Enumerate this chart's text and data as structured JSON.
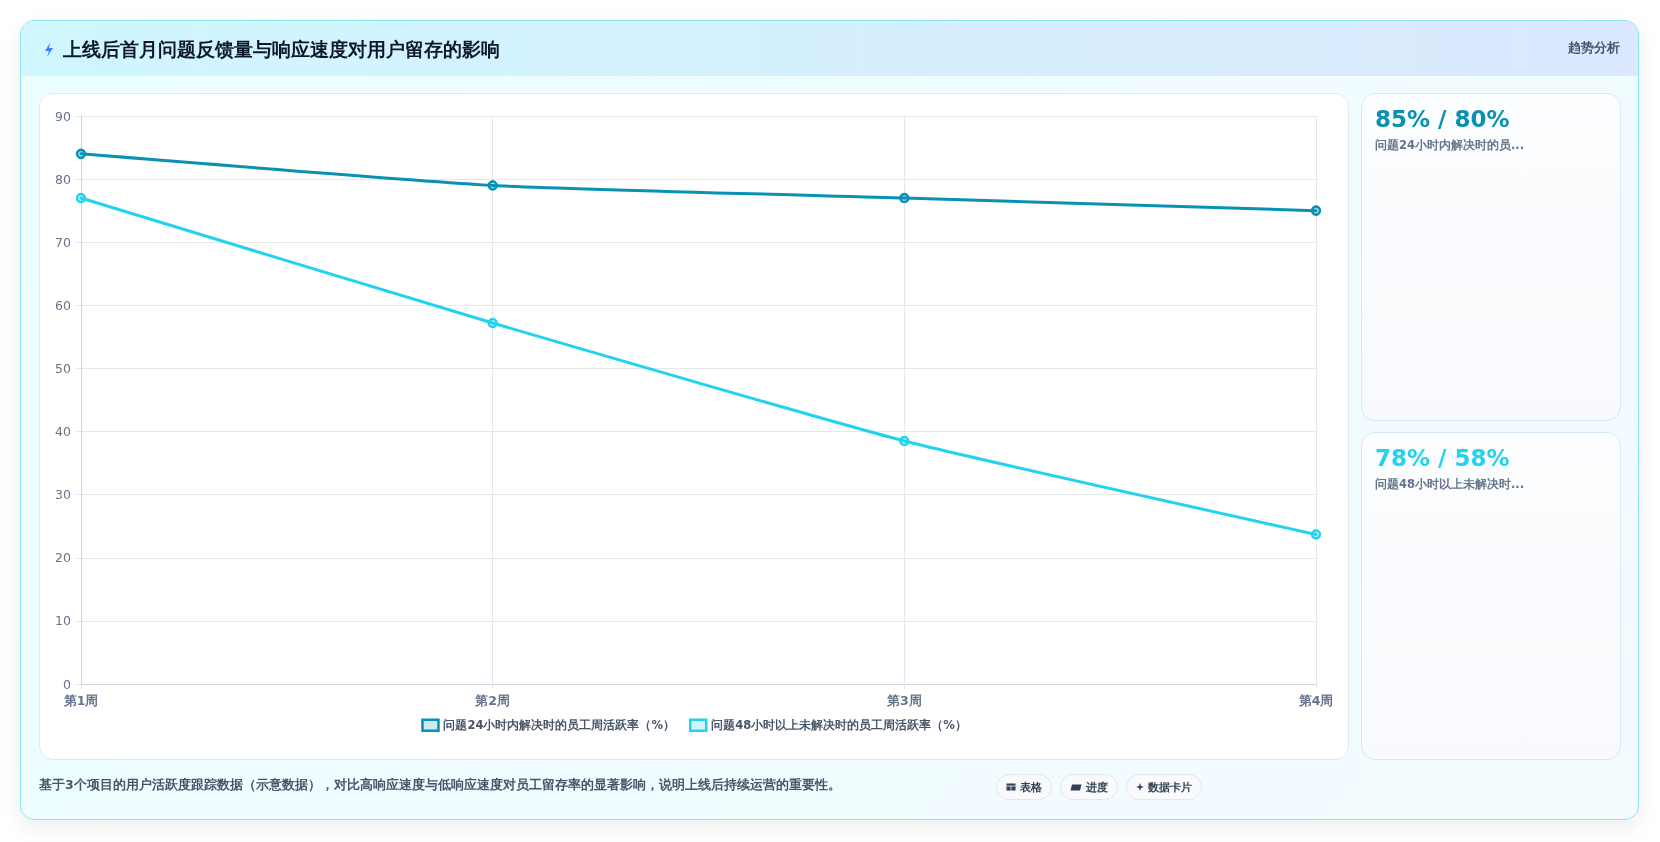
{
  "chart_data": [
    {
      "type": "line",
      "title": "上线后首月问题反馈量与响应速度对用户留存的影响",
      "categories": [
        "第1周",
        "第2周",
        "第3周",
        "第4周"
      ],
      "series": [
        {
          "name": "问题24小时内解决时的员工周活跃率（%）",
          "color": "#0891b2",
          "values": [
            84,
            79,
            77,
            75
          ]
        },
        {
          "name": "问题48小时以上未解决时的员工周活跃率（%）",
          "color": "#22d3ee",
          "values": [
            77,
            57.2,
            38.5,
            23.7
          ]
        }
      ],
      "ylim": [
        0,
        90
      ],
      "yticks": [
        0,
        10,
        20,
        30,
        40,
        50,
        60,
        70,
        80,
        90
      ],
      "grid": true,
      "legend": "bottom",
      "marker": "circle",
      "line_style": "solid",
      "annotations": [
        "趋势分析",
        "基于3个项目的用户活跃度跟踪数据（示意数据），对比高响应速度与低响应速度对员工留存率的显著影响，说明上线后持续运营的重要性。",
        "表格",
        "进度",
        "数据卡片"
      ]
    },
    {
      "type": "other",
      "title": "85% / 80%",
      "subtitle": "问题24小时内解决时的员...",
      "color": "#0891b2"
    },
    {
      "type": "other",
      "title": "78% / 58%",
      "subtitle": "问题48小时以上未解决时...",
      "color": "#22d3ee"
    }
  ]
}
